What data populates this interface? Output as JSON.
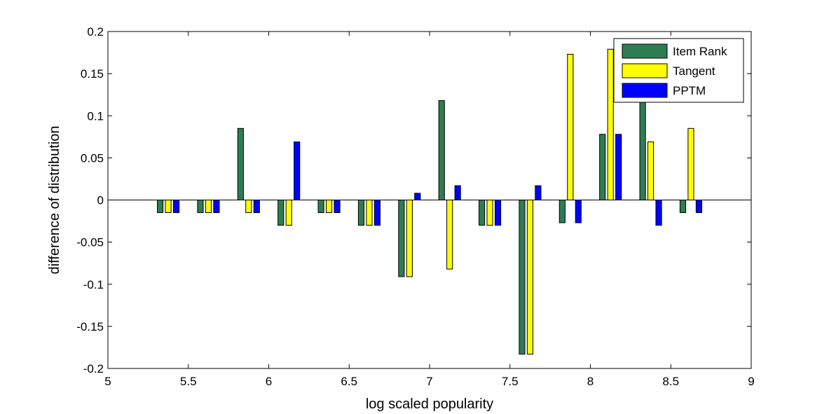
{
  "chart_data": {
    "type": "bar",
    "xlabel": "log scaled popularity",
    "ylabel": "difference of distribution",
    "xlim": [
      5,
      9
    ],
    "ylim": [
      -0.2,
      0.2
    ],
    "xticks": [
      "5",
      "5.5",
      "6",
      "6.5",
      "7",
      "7.5",
      "8",
      "8.5",
      "9"
    ],
    "yticks": [
      "0.2",
      "0.15",
      "0.1",
      "0.05",
      "0",
      "-0.05",
      "-0.1",
      "-0.15",
      "-0.2"
    ],
    "x": [
      5.375,
      5.625,
      5.875,
      6.125,
      6.375,
      6.625,
      6.875,
      7.125,
      7.375,
      7.625,
      7.875,
      8.125,
      8.375,
      8.625
    ],
    "legend_position": "top-right",
    "grid": false,
    "series": [
      {
        "name": "Item Rank",
        "color": "#2e7d52",
        "values": [
          -0.015,
          -0.015,
          0.085,
          -0.03,
          -0.015,
          -0.03,
          -0.091,
          0.118,
          -0.03,
          -0.183,
          -0.027,
          0.078,
          0.118,
          -0.015
        ]
      },
      {
        "name": "Tangent",
        "color": "#ffff00",
        "values": [
          -0.015,
          -0.015,
          -0.015,
          -0.03,
          -0.015,
          -0.03,
          -0.091,
          -0.082,
          -0.03,
          -0.183,
          0.173,
          0.179,
          0.069,
          0.085
        ]
      },
      {
        "name": "PPTM",
        "color": "#0000ff",
        "values": [
          -0.015,
          -0.015,
          -0.015,
          0.069,
          -0.015,
          -0.03,
          0.008,
          0.017,
          -0.03,
          0.017,
          -0.027,
          0.078,
          -0.03,
          -0.015
        ]
      }
    ]
  }
}
